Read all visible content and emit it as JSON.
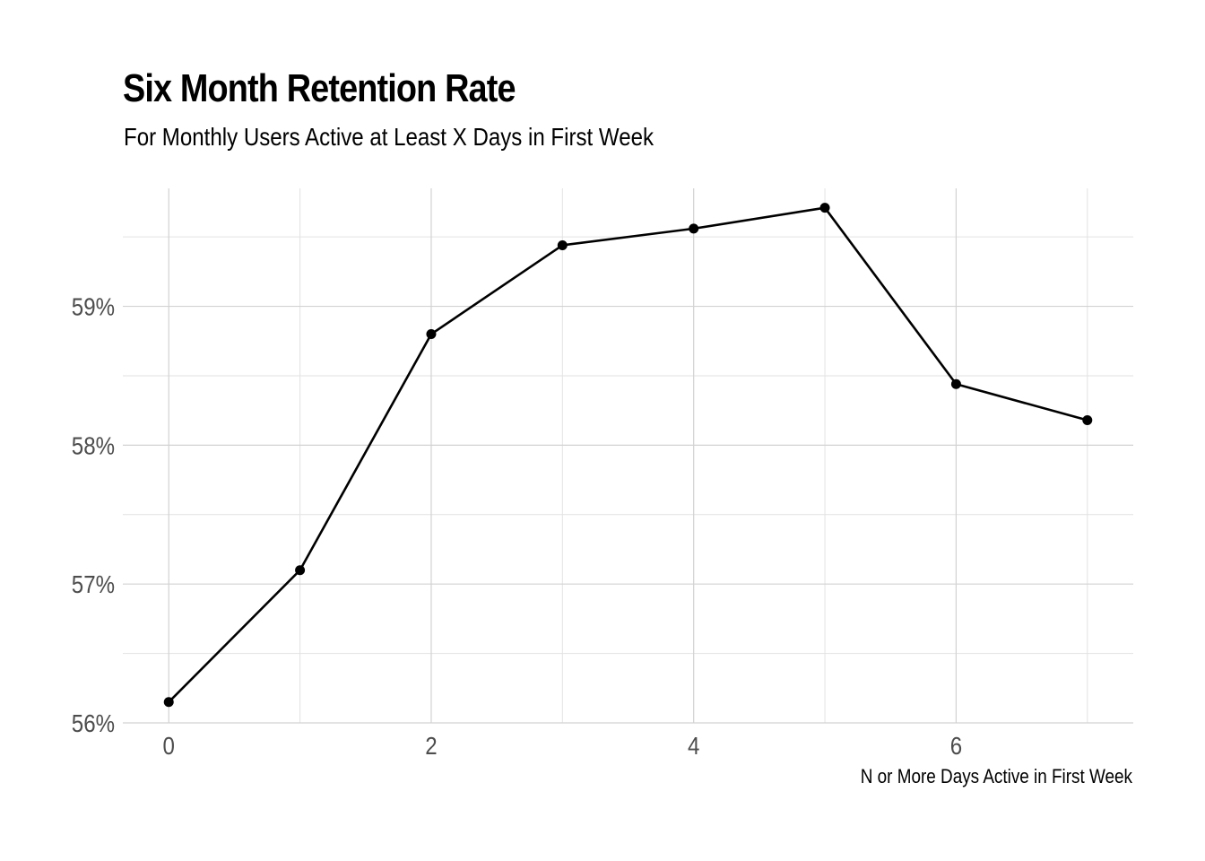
{
  "chart_data": {
    "type": "line",
    "title": "Six Month Retention Rate",
    "subtitle": "For Monthly Users Active at Least X Days in First Week",
    "xlabel": "N or More Days Active in First Week",
    "ylabel": "",
    "x": [
      0,
      1,
      2,
      3,
      4,
      5,
      6,
      7
    ],
    "series": [
      {
        "values": [
          56.15,
          57.1,
          58.8,
          59.44,
          59.56,
          59.71,
          58.44,
          58.18
        ],
        "color": "#000000"
      }
    ],
    "xlim": [
      -0.35,
      7.35
    ],
    "ylim": [
      56.0,
      59.85
    ],
    "x_major_ticks": [
      0,
      2,
      4,
      6
    ],
    "x_minor_ticks": [
      1,
      3,
      5,
      7
    ],
    "x_tick_labels": [
      "0",
      "2",
      "4",
      "6"
    ],
    "y_major_ticks": [
      56,
      57,
      58,
      59
    ],
    "y_minor_ticks": [
      56.5,
      57.5,
      58.5,
      59.5
    ],
    "y_tick_labels": [
      "56%",
      "57%",
      "58%",
      "59%"
    ],
    "grid": true,
    "legend": "none"
  }
}
